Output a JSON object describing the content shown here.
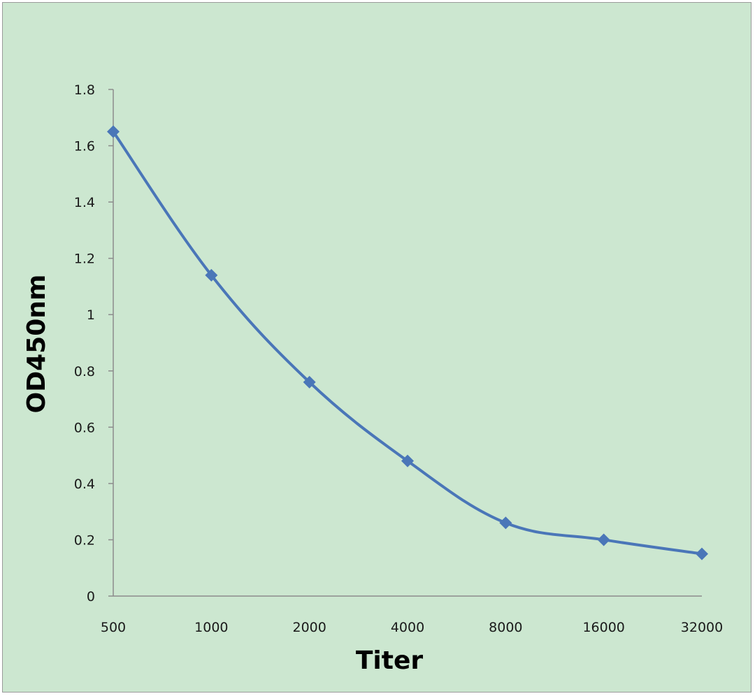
{
  "chart_data": {
    "type": "line",
    "title": "",
    "xlabel": "Titer",
    "ylabel": "OD450nm",
    "categories": [
      "500",
      "1000",
      "2000",
      "4000",
      "8000",
      "16000",
      "32000"
    ],
    "series": [
      {
        "values": [
          1.65,
          1.14,
          0.76,
          0.48,
          0.26,
          0.2,
          0.15
        ]
      }
    ],
    "yticks": [
      "0",
      "0.2",
      "0.4",
      "0.6",
      "0.8",
      "1",
      "1.2",
      "1.4",
      "1.6",
      "1.8"
    ],
    "ylim": [
      0,
      1.8
    ],
    "grid": false,
    "legend": "none",
    "smooth": true,
    "marker": "diamond"
  },
  "colors": {
    "background": "#cce7d0",
    "series": "#4a76b8",
    "axis": "#8c8c8c",
    "frame": "#9a9a9a"
  }
}
